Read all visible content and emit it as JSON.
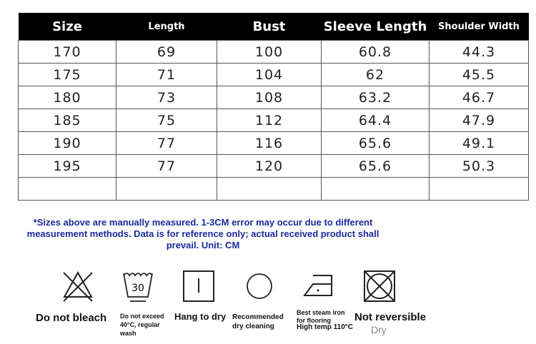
{
  "table": {
    "headers": [
      "Size",
      "Length",
      "Bust",
      "Sleeve Length",
      "Shoulder Width"
    ],
    "rows": [
      [
        "170",
        "69",
        "100",
        "60.8",
        "44.3"
      ],
      [
        "175",
        "71",
        "104",
        "62",
        "45.5"
      ],
      [
        "180",
        "73",
        "108",
        "63.2",
        "46.7"
      ],
      [
        "185",
        "75",
        "112",
        "64.4",
        "47.9"
      ],
      [
        "190",
        "77",
        "116",
        "65.6",
        "49.1"
      ],
      [
        "195",
        "77",
        "120",
        "65.6",
        "50.3"
      ],
      [
        "",
        "",
        "",
        "",
        ""
      ]
    ]
  },
  "note": "*Sizes above are manually measured. 1-3CM error may occur due to different measurement methods. Data is for reference only; actual received product shall prevail. Unit: CM",
  "care": {
    "wash_temp_icon_text": "30",
    "do_not_bleach": "Do not bleach",
    "wash": "Do not exceed 40°C, regular wash",
    "hang": "Hang to dry",
    "dry_clean": "Recommended dry cleaning",
    "iron_line1": "Best steam iron for flooring",
    "iron_line2": "High temp 110°C",
    "not_reversible": "Not reversible",
    "dry": "Dry"
  }
}
